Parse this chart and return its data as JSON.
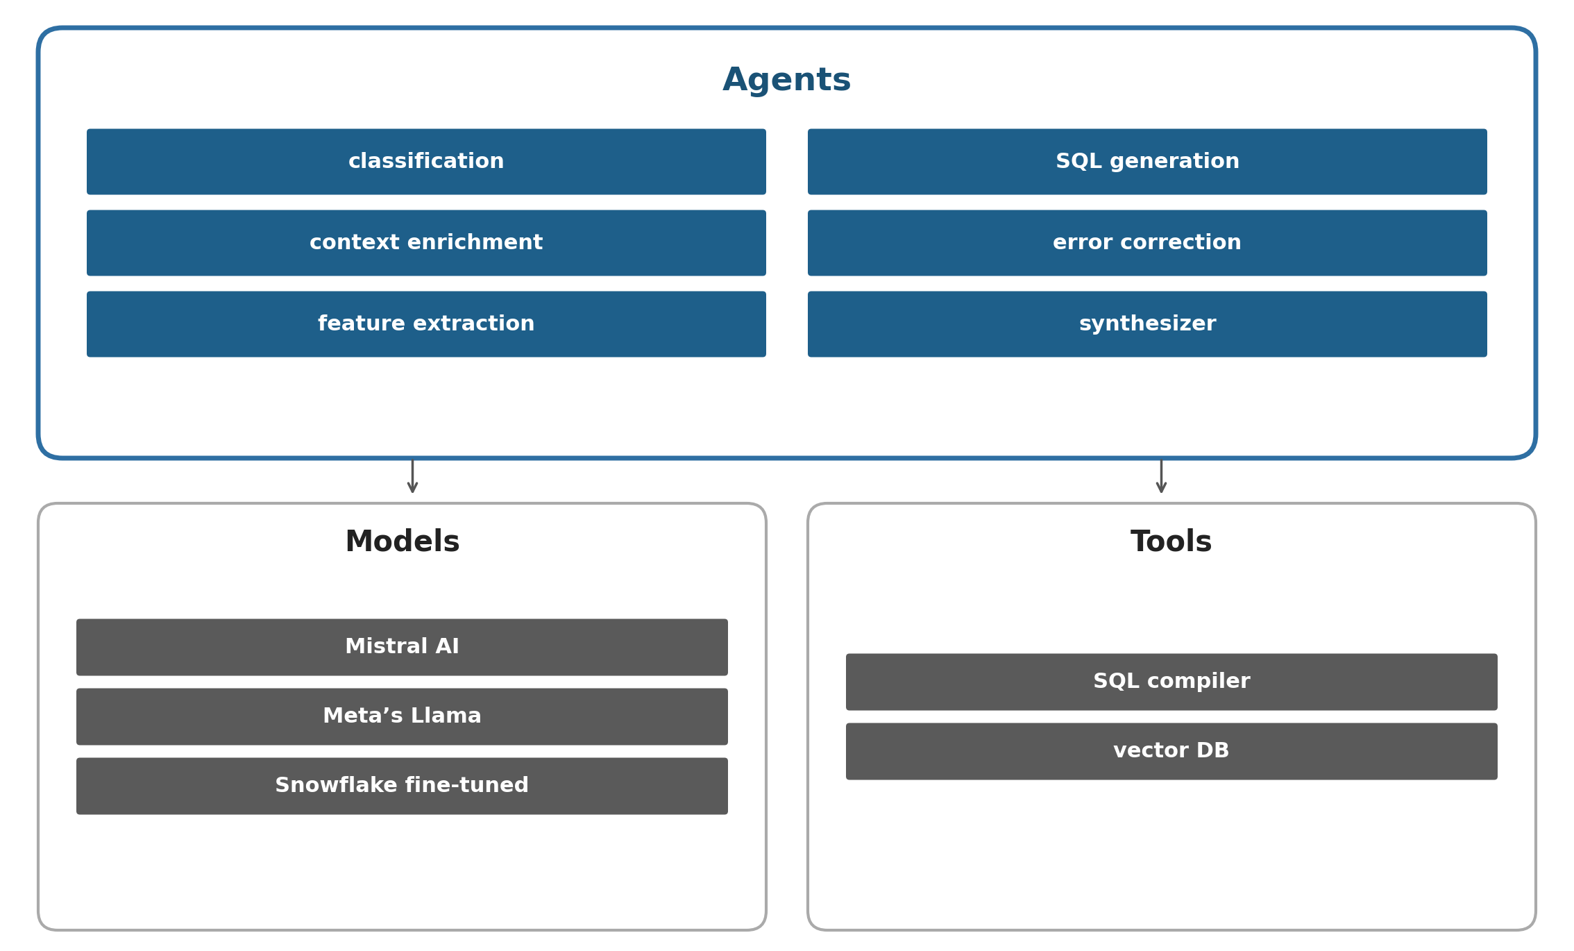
{
  "background_color": "#ffffff",
  "agents_title": "Agents",
  "agents_title_color": "#1a5276",
  "agents_box_edge_color": "#2e6fa3",
  "agents_box_fill": "#ffffff",
  "agents_left_items": [
    "classification",
    "context enrichment",
    "feature extraction"
  ],
  "agents_right_items": [
    "SQL generation",
    "error correction",
    "synthesizer"
  ],
  "agents_item_bg": "#1e5f8a",
  "agents_item_text_color": "#ffffff",
  "models_title": "Models",
  "models_title_color": "#222222",
  "models_box_edge_color": "#aaaaaa",
  "models_box_fill": "#ffffff",
  "models_items": [
    "Mistral AI",
    "Meta’s Llama",
    "Snowflake fine-tuned"
  ],
  "models_item_bg": "#5a5a5a",
  "models_item_text_color": "#ffffff",
  "tools_title": "Tools",
  "tools_title_color": "#222222",
  "tools_box_edge_color": "#aaaaaa",
  "tools_box_fill": "#ffffff",
  "tools_items": [
    "SQL compiler",
    "vector DB"
  ],
  "tools_item_bg": "#5a5a5a",
  "tools_item_text_color": "#ffffff",
  "arrow_color": "#555555",
  "item_fontsize": 22,
  "agents_title_fontsize": 34,
  "section_title_fontsize": 30
}
